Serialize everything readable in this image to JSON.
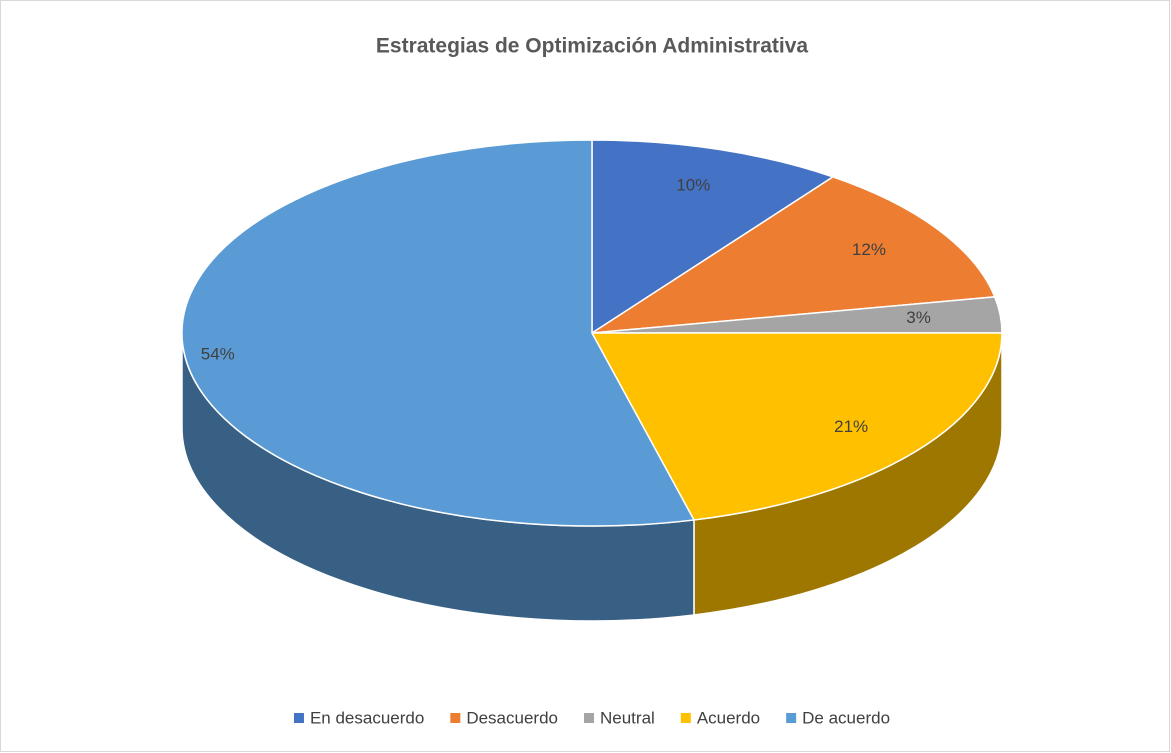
{
  "chart_data": {
    "type": "pie",
    "title": "Estrategias de Optimización Administrativa",
    "categories": [
      "En desacuerdo",
      "Desacuerdo",
      "Neutral",
      "Acuerdo",
      "De acuerdo"
    ],
    "values": [
      10,
      12,
      3,
      21,
      54
    ],
    "value_labels": [
      "10%",
      "12%",
      "3%",
      "21%",
      "54%"
    ],
    "colors": [
      "#4472c4",
      "#ed7d31",
      "#a5a5a5",
      "#ffc000",
      "#5b9bd5"
    ],
    "legend": "bottom"
  }
}
